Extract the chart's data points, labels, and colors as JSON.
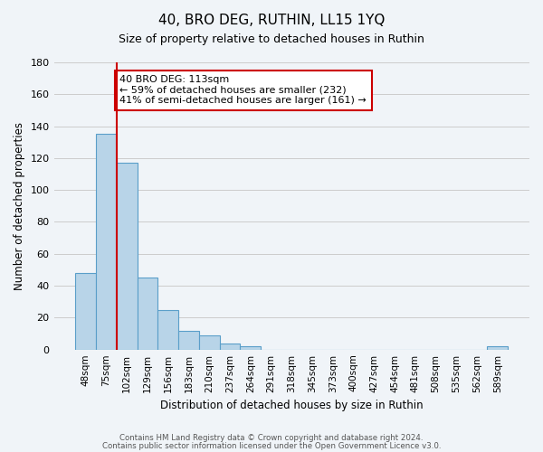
{
  "title": "40, BRO DEG, RUTHIN, LL15 1YQ",
  "subtitle": "Size of property relative to detached houses in Ruthin",
  "xlabel": "Distribution of detached houses by size in Ruthin",
  "ylabel": "Number of detached properties",
  "bar_values": [
    48,
    135,
    117,
    45,
    25,
    12,
    9,
    4,
    2,
    0,
    0,
    0,
    0,
    0,
    0,
    0,
    0,
    0,
    0,
    0,
    2
  ],
  "bar_labels": [
    "48sqm",
    "75sqm",
    "102sqm",
    "129sqm",
    "156sqm",
    "183sqm",
    "210sqm",
    "237sqm",
    "264sqm",
    "291sqm",
    "318sqm",
    "345sqm",
    "373sqm",
    "400sqm",
    "427sqm",
    "454sqm",
    "481sqm",
    "508sqm",
    "535sqm",
    "562sqm",
    "589sqm"
  ],
  "bar_color": "#b8d4e8",
  "bar_edge_color": "#5a9ec9",
  "vline_x_index": 2,
  "vline_color": "#cc0000",
  "annotation_text": "40 BRO DEG: 113sqm\n← 59% of detached houses are smaller (232)\n41% of semi-detached houses are larger (161) →",
  "annotation_box_color": "#ffffff",
  "annotation_box_edge": "#cc0000",
  "ylim": [
    0,
    180
  ],
  "yticks": [
    0,
    20,
    40,
    60,
    80,
    100,
    120,
    140,
    160,
    180
  ],
  "footer_line1": "Contains HM Land Registry data © Crown copyright and database right 2024.",
  "footer_line2": "Contains public sector information licensed under the Open Government Licence v3.0.",
  "fig_width": 6.0,
  "fig_height": 5.0,
  "dpi": 100,
  "bg_color": "#f0f4f8"
}
